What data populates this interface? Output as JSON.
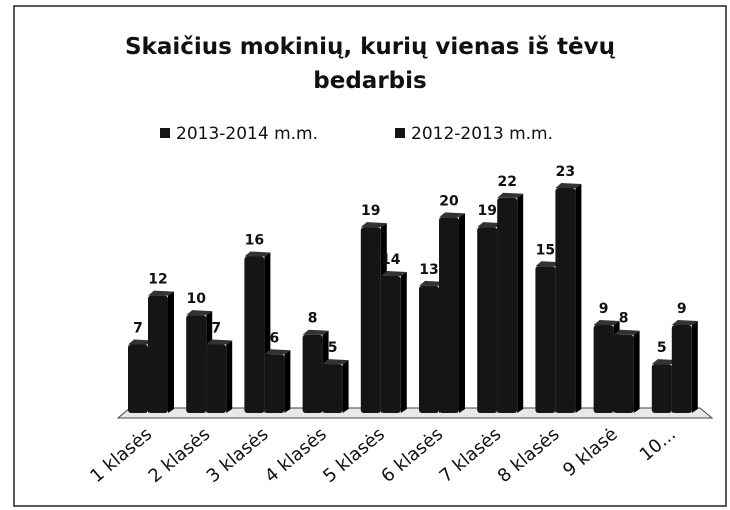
{
  "chart_data": {
    "type": "bar",
    "title": "Skaičius mokinių, kurių vienas iš tėvų bedarbis",
    "categories": [
      "1 klasės",
      "2 klasės",
      "3 klasės",
      "4 klasės",
      "5 klasės",
      "6 klasės",
      "7 klasės",
      "8 klasės",
      "9 klasė",
      "10..."
    ],
    "series": [
      {
        "name": "2013-2014 m.m.",
        "color": "#151515",
        "values": [
          7,
          10,
          16,
          8,
          19,
          13,
          19,
          15,
          9,
          5
        ]
      },
      {
        "name": "2012-2013 m.m.",
        "color": "#151515",
        "values": [
          12,
          7,
          6,
          5,
          14,
          20,
          22,
          23,
          8,
          9
        ]
      }
    ],
    "legend": "top",
    "grid": false
  }
}
